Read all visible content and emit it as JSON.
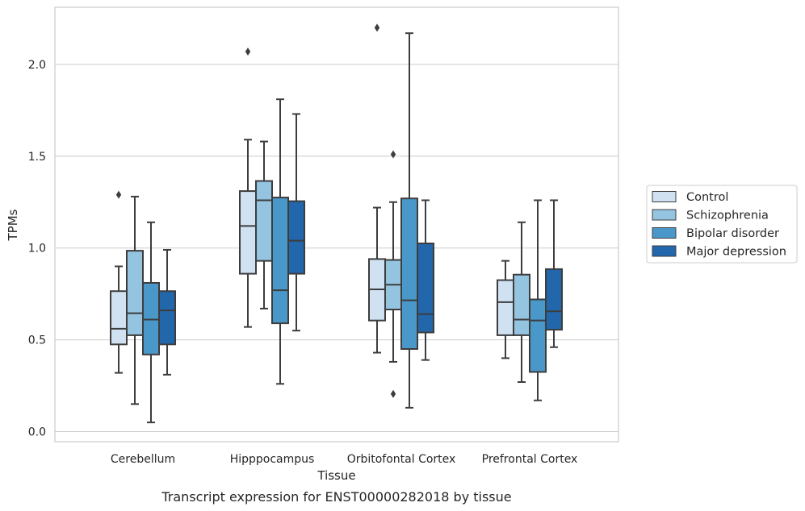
{
  "chart_data": {
    "type": "box",
    "xlabel": "Tissue",
    "ylabel": "TPMs",
    "caption": "Transcript expression for ENST00000282018 by tissue",
    "ylim": [
      -0.05,
      2.32
    ],
    "yticks": [
      "0.0",
      "0.5",
      "1.0",
      "1.5",
      "2.0"
    ],
    "ytick_values": [
      0.0,
      0.5,
      1.0,
      1.5,
      2.0
    ],
    "grid": "horizontal",
    "legend_position": "right",
    "categories": [
      "Cerebellum",
      "Hipppocampus",
      "Orbitofontal Cortex",
      "Prefrontal Cortex"
    ],
    "series": [
      {
        "name": "Control",
        "color": "#d0e1f2",
        "boxes": [
          {
            "whislo": 0.32,
            "q1": 0.475,
            "med": 0.56,
            "q3": 0.765,
            "whishi": 0.9,
            "fliers": [
              1.29
            ]
          },
          {
            "whislo": 0.57,
            "q1": 0.86,
            "med": 1.12,
            "q3": 1.31,
            "whishi": 1.59,
            "fliers": [
              2.07
            ]
          },
          {
            "whislo": 0.43,
            "q1": 0.605,
            "med": 0.775,
            "q3": 0.94,
            "whishi": 1.22,
            "fliers": [
              2.2
            ]
          },
          {
            "whislo": 0.4,
            "q1": 0.525,
            "med": 0.705,
            "q3": 0.825,
            "whishi": 0.93,
            "fliers": []
          }
        ]
      },
      {
        "name": "Schizophrenia",
        "color": "#94c4df",
        "boxes": [
          {
            "whislo": 0.15,
            "q1": 0.525,
            "med": 0.645,
            "q3": 0.985,
            "whishi": 1.28,
            "fliers": []
          },
          {
            "whislo": 0.67,
            "q1": 0.93,
            "med": 1.26,
            "q3": 1.365,
            "whishi": 1.58,
            "fliers": []
          },
          {
            "whislo": 0.38,
            "q1": 0.665,
            "med": 0.8,
            "q3": 0.935,
            "whishi": 1.25,
            "fliers": [
              1.51,
              0.205
            ]
          },
          {
            "whislo": 0.27,
            "q1": 0.525,
            "med": 0.61,
            "q3": 0.855,
            "whishi": 1.14,
            "fliers": []
          }
        ]
      },
      {
        "name": "Bipolar disorder",
        "color": "#4a98c9",
        "boxes": [
          {
            "whislo": 0.05,
            "q1": 0.42,
            "med": 0.61,
            "q3": 0.81,
            "whishi": 1.14,
            "fliers": []
          },
          {
            "whislo": 0.26,
            "q1": 0.59,
            "med": 0.77,
            "q3": 1.275,
            "whishi": 1.81,
            "fliers": []
          },
          {
            "whislo": 0.13,
            "q1": 0.45,
            "med": 0.715,
            "q3": 1.27,
            "whishi": 2.17,
            "fliers": []
          },
          {
            "whislo": 0.17,
            "q1": 0.325,
            "med": 0.605,
            "q3": 0.72,
            "whishi": 1.26,
            "fliers": []
          }
        ]
      },
      {
        "name": "Major depression",
        "color": "#2266ac",
        "boxes": [
          {
            "whislo": 0.31,
            "q1": 0.475,
            "med": 0.66,
            "q3": 0.765,
            "whishi": 0.99,
            "fliers": []
          },
          {
            "whislo": 0.55,
            "q1": 0.86,
            "med": 1.04,
            "q3": 1.255,
            "whishi": 1.73,
            "fliers": []
          },
          {
            "whislo": 0.39,
            "q1": 0.54,
            "med": 0.64,
            "q3": 1.025,
            "whishi": 1.26,
            "fliers": []
          },
          {
            "whislo": 0.46,
            "q1": 0.555,
            "med": 0.655,
            "q3": 0.885,
            "whishi": 1.26,
            "fliers": []
          }
        ]
      }
    ]
  }
}
